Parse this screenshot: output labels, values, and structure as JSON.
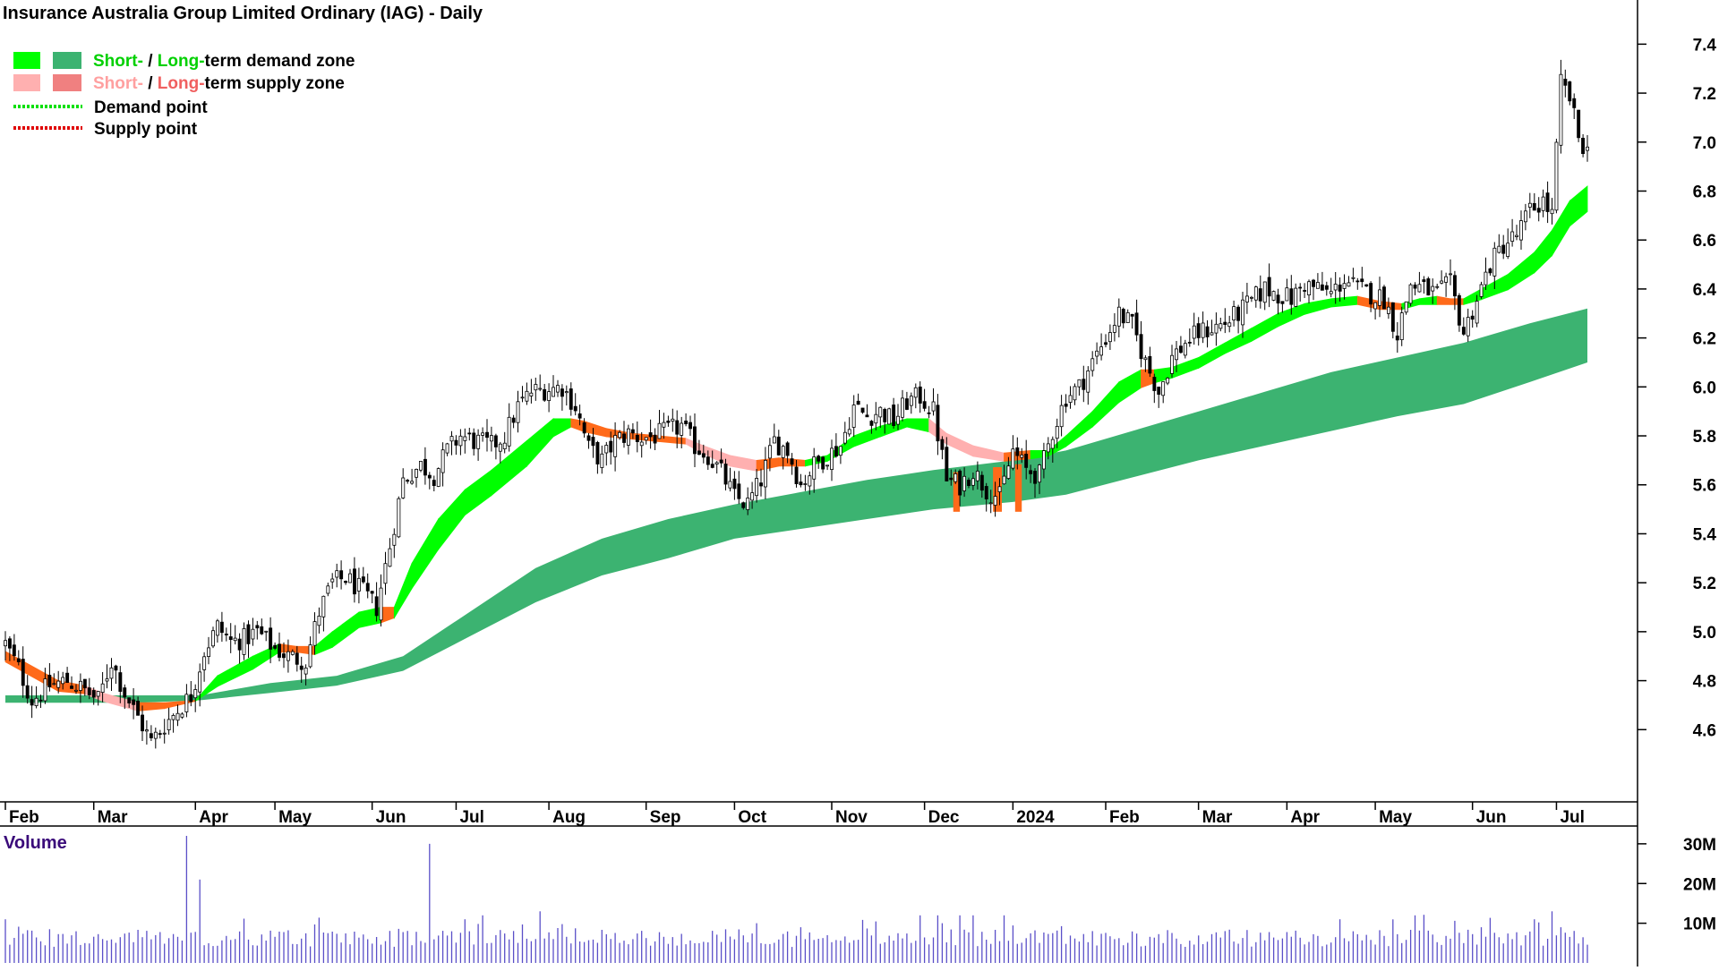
{
  "chart_data": {
    "type": "candlestick",
    "title": "Insurance Australia Group Limited Ordinary (IAG) - Daily",
    "legend": {
      "demand_zone": {
        "short": "Short-",
        "sep": " / ",
        "long": "Long-",
        "rest": "term demand zone"
      },
      "supply_zone": {
        "short": "Short-",
        "sep": " / ",
        "long": "Long-",
        "rest": "term supply zone"
      },
      "demand_point": "Demand point",
      "supply_point": "Supply point"
    },
    "colors": {
      "short_demand": "#00ff00",
      "long_demand": "#3cb371",
      "short_supply": "#ffb0b0",
      "long_supply": "#f08080",
      "transition": "#ff6a1a",
      "candle": "#000000",
      "volume": "#5a4fc8",
      "demand_point": "#00e000",
      "supply_point": "#e00000",
      "volume_title": "#3a0a7a"
    },
    "x_axis": {
      "months": [
        {
          "label": "Feb",
          "day": 0
        },
        {
          "label": "Mar",
          "day": 20
        },
        {
          "label": "Apr",
          "day": 43
        },
        {
          "label": "May",
          "day": 61
        },
        {
          "label": "Jun",
          "day": 83
        },
        {
          "label": "Jul",
          "day": 102
        },
        {
          "label": "Aug",
          "day": 123
        },
        {
          "label": "Sep",
          "day": 145
        },
        {
          "label": "Oct",
          "day": 165
        },
        {
          "label": "Nov",
          "day": 187
        },
        {
          "label": "Dec",
          "day": 208
        },
        {
          "label": "2024",
          "day": 228
        },
        {
          "label": "Feb",
          "day": 249
        },
        {
          "label": "Mar",
          "day": 270
        },
        {
          "label": "Apr",
          "day": 290
        },
        {
          "label": "May",
          "day": 310
        },
        {
          "label": "Jun",
          "day": 332
        },
        {
          "label": "Jul",
          "day": 351
        }
      ],
      "total_days": 358
    },
    "price_axis": {
      "min": 4.4,
      "max": 7.5,
      "ticks": [
        "4.6",
        "4.8",
        "5.0",
        "5.2",
        "5.4",
        "5.6",
        "5.8",
        "6.0",
        "6.2",
        "6.4",
        "6.6",
        "6.8",
        "7.0",
        "7.2",
        "7.4"
      ]
    },
    "volume_panel": {
      "title": "Volume",
      "max": 32,
      "ticks": [
        {
          "v": 10,
          "label": "10M"
        },
        {
          "v": 20,
          "label": "20M"
        },
        {
          "v": 30,
          "label": "30M"
        }
      ]
    },
    "close_path": [
      [
        0,
        4.95
      ],
      [
        3,
        4.85
      ],
      [
        6,
        4.72
      ],
      [
        10,
        4.78
      ],
      [
        14,
        4.8
      ],
      [
        18,
        4.76
      ],
      [
        21,
        4.72
      ],
      [
        24,
        4.88
      ],
      [
        27,
        4.75
      ],
      [
        30,
        4.65
      ],
      [
        33,
        4.55
      ],
      [
        36,
        4.62
      ],
      [
        39,
        4.68
      ],
      [
        42,
        4.74
      ],
      [
        45,
        4.92
      ],
      [
        48,
        5.02
      ],
      [
        51,
        4.96
      ],
      [
        54,
        4.97
      ],
      [
        57,
        5.0
      ],
      [
        61,
        4.93
      ],
      [
        64,
        4.9
      ],
      [
        68,
        4.88
      ],
      [
        71,
        5.08
      ],
      [
        74,
        5.2
      ],
      [
        77,
        5.22
      ],
      [
        81,
        5.16
      ],
      [
        84,
        5.1
      ],
      [
        87,
        5.35
      ],
      [
        90,
        5.62
      ],
      [
        94,
        5.68
      ],
      [
        97,
        5.64
      ],
      [
        100,
        5.74
      ],
      [
        103,
        5.8
      ],
      [
        106,
        5.78
      ],
      [
        110,
        5.76
      ],
      [
        113,
        5.8
      ],
      [
        116,
        5.92
      ],
      [
        119,
        5.98
      ],
      [
        122,
        5.99
      ],
      [
        126,
        6.0
      ],
      [
        129,
        5.92
      ],
      [
        132,
        5.75
      ],
      [
        135,
        5.7
      ],
      [
        138,
        5.78
      ],
      [
        141,
        5.81
      ],
      [
        144,
        5.79
      ],
      [
        147,
        5.8
      ],
      [
        150,
        5.82
      ],
      [
        153,
        5.84
      ],
      [
        156,
        5.76
      ],
      [
        159,
        5.72
      ],
      [
        162,
        5.65
      ],
      [
        165,
        5.55
      ],
      [
        168,
        5.52
      ],
      [
        171,
        5.62
      ],
      [
        174,
        5.78
      ],
      [
        177,
        5.74
      ],
      [
        180,
        5.6
      ],
      [
        183,
        5.68
      ],
      [
        186,
        5.72
      ],
      [
        189,
        5.76
      ],
      [
        192,
        5.92
      ],
      [
        195,
        5.88
      ],
      [
        198,
        5.9
      ],
      [
        201,
        5.86
      ],
      [
        204,
        5.94
      ],
      [
        207,
        5.96
      ],
      [
        210,
        5.9
      ],
      [
        213,
        5.62
      ],
      [
        216,
        5.6
      ],
      [
        219,
        5.66
      ],
      [
        222,
        5.58
      ],
      [
        225,
        5.55
      ],
      [
        228,
        5.74
      ],
      [
        231,
        5.66
      ],
      [
        234,
        5.64
      ],
      [
        237,
        5.82
      ],
      [
        240,
        5.96
      ],
      [
        243,
        6.0
      ],
      [
        246,
        6.1
      ],
      [
        249,
        6.2
      ],
      [
        252,
        6.3
      ],
      [
        255,
        6.25
      ],
      [
        258,
        6.1
      ],
      [
        261,
        5.98
      ],
      [
        264,
        6.12
      ],
      [
        267,
        6.18
      ],
      [
        270,
        6.22
      ],
      [
        273,
        6.24
      ],
      [
        276,
        6.26
      ],
      [
        279,
        6.3
      ],
      [
        282,
        6.35
      ],
      [
        285,
        6.4
      ],
      [
        288,
        6.38
      ],
      [
        291,
        6.36
      ],
      [
        294,
        6.42
      ],
      [
        297,
        6.4
      ],
      [
        300,
        6.38
      ],
      [
        303,
        6.44
      ],
      [
        306,
        6.4
      ],
      [
        309,
        6.38
      ],
      [
        312,
        6.36
      ],
      [
        315,
        6.22
      ],
      [
        318,
        6.42
      ],
      [
        321,
        6.4
      ],
      [
        324,
        6.38
      ],
      [
        327,
        6.42
      ],
      [
        330,
        6.22
      ],
      [
        333,
        6.36
      ],
      [
        336,
        6.5
      ],
      [
        339,
        6.58
      ],
      [
        342,
        6.62
      ],
      [
        345,
        6.72
      ],
      [
        348,
        6.76
      ],
      [
        350,
        6.7
      ],
      [
        352,
        7.24
      ],
      [
        354,
        7.18
      ],
      [
        356,
        7.02
      ],
      [
        358,
        6.96
      ]
    ],
    "long_zone": [
      [
        0,
        4.74,
        4.71
      ],
      [
        30,
        4.74,
        4.71
      ],
      [
        44,
        4.74,
        4.72
      ],
      [
        60,
        4.79,
        4.75
      ],
      [
        75,
        4.82,
        4.78
      ],
      [
        90,
        4.9,
        4.84
      ],
      [
        105,
        5.08,
        4.98
      ],
      [
        120,
        5.26,
        5.12
      ],
      [
        135,
        5.38,
        5.23
      ],
      [
        150,
        5.46,
        5.3
      ],
      [
        165,
        5.52,
        5.38
      ],
      [
        180,
        5.57,
        5.42
      ],
      [
        195,
        5.62,
        5.46
      ],
      [
        210,
        5.66,
        5.5
      ],
      [
        228,
        5.7,
        5.53
      ],
      [
        240,
        5.74,
        5.56
      ],
      [
        255,
        5.82,
        5.63
      ],
      [
        270,
        5.9,
        5.7
      ],
      [
        285,
        5.98,
        5.76
      ],
      [
        300,
        6.06,
        5.82
      ],
      [
        315,
        6.12,
        5.88
      ],
      [
        330,
        6.18,
        5.93
      ],
      [
        345,
        6.26,
        6.02
      ],
      [
        358,
        6.32,
        6.1
      ]
    ],
    "short_zone": [
      [
        0,
        4.92,
        4.88,
        "o"
      ],
      [
        12,
        4.8,
        4.76,
        "o"
      ],
      [
        18,
        4.78,
        4.75,
        "o"
      ],
      [
        22,
        4.75,
        4.72,
        "s"
      ],
      [
        30,
        4.71,
        4.68,
        "s"
      ],
      [
        36,
        4.71,
        4.69,
        "o"
      ],
      [
        43,
        4.72,
        4.72,
        "o"
      ],
      [
        48,
        4.82,
        4.78,
        "d"
      ],
      [
        56,
        4.9,
        4.85,
        "d"
      ],
      [
        62,
        4.95,
        4.92,
        "d"
      ],
      [
        66,
        4.94,
        4.92,
        "o"
      ],
      [
        70,
        4.94,
        4.91,
        "o"
      ],
      [
        74,
        5.0,
        4.94,
        "d"
      ],
      [
        80,
        5.08,
        5.02,
        "d"
      ],
      [
        85,
        5.1,
        5.04,
        "d"
      ],
      [
        88,
        5.1,
        5.06,
        "o"
      ],
      [
        92,
        5.28,
        5.18,
        "d"
      ],
      [
        98,
        5.46,
        5.34,
        "d"
      ],
      [
        104,
        5.58,
        5.48,
        "d"
      ],
      [
        110,
        5.66,
        5.56,
        "d"
      ],
      [
        118,
        5.78,
        5.68,
        "d"
      ],
      [
        124,
        5.87,
        5.8,
        "d"
      ],
      [
        128,
        5.87,
        5.84,
        "d"
      ],
      [
        131,
        5.86,
        5.82,
        "o"
      ],
      [
        136,
        5.83,
        5.8,
        "o"
      ],
      [
        142,
        5.81,
        5.79,
        "o"
      ],
      [
        148,
        5.8,
        5.78,
        "o"
      ],
      [
        154,
        5.79,
        5.77,
        "o"
      ],
      [
        158,
        5.76,
        5.73,
        "s"
      ],
      [
        164,
        5.72,
        5.68,
        "s"
      ],
      [
        170,
        5.7,
        5.66,
        "s"
      ],
      [
        175,
        5.71,
        5.68,
        "o"
      ],
      [
        181,
        5.7,
        5.68,
        "o"
      ],
      [
        186,
        5.72,
        5.7,
        "d"
      ],
      [
        192,
        5.8,
        5.76,
        "d"
      ],
      [
        198,
        5.84,
        5.8,
        "d"
      ],
      [
        204,
        5.87,
        5.84,
        "d"
      ],
      [
        209,
        5.87,
        5.82,
        "d"
      ],
      [
        213,
        5.81,
        5.77,
        "s"
      ],
      [
        219,
        5.76,
        5.72,
        "s"
      ],
      [
        226,
        5.73,
        5.7,
        "s"
      ],
      [
        232,
        5.74,
        5.71,
        "o"
      ],
      [
        236,
        5.74,
        5.72,
        "d"
      ],
      [
        240,
        5.8,
        5.76,
        "d"
      ],
      [
        246,
        5.9,
        5.84,
        "d"
      ],
      [
        252,
        6.02,
        5.94,
        "d"
      ],
      [
        257,
        6.07,
        6.0,
        "d"
      ],
      [
        260,
        6.07,
        6.02,
        "o"
      ],
      [
        264,
        6.08,
        6.04,
        "d"
      ],
      [
        270,
        6.12,
        6.08,
        "d"
      ],
      [
        276,
        6.18,
        6.14,
        "d"
      ],
      [
        282,
        6.24,
        6.19,
        "d"
      ],
      [
        288,
        6.3,
        6.25,
        "d"
      ],
      [
        294,
        6.34,
        6.3,
        "d"
      ],
      [
        300,
        6.36,
        6.33,
        "d"
      ],
      [
        306,
        6.37,
        6.34,
        "d"
      ],
      [
        311,
        6.35,
        6.32,
        "o"
      ],
      [
        316,
        6.34,
        6.32,
        "o"
      ],
      [
        320,
        6.36,
        6.34,
        "d"
      ],
      [
        324,
        6.37,
        6.34,
        "d"
      ],
      [
        327,
        6.36,
        6.34,
        "o"
      ],
      [
        330,
        6.36,
        6.34,
        "o"
      ],
      [
        334,
        6.4,
        6.36,
        "d"
      ],
      [
        340,
        6.46,
        6.4,
        "d"
      ],
      [
        346,
        6.55,
        6.47,
        "d"
      ],
      [
        350,
        6.64,
        6.54,
        "d"
      ],
      [
        354,
        6.76,
        6.66,
        "d"
      ],
      [
        358,
        6.82,
        6.72,
        "d"
      ]
    ],
    "long_supply_blocks": [
      [
        214.5,
        216
      ],
      [
        223.5,
        225.5
      ],
      [
        228.5,
        230
      ]
    ]
  }
}
